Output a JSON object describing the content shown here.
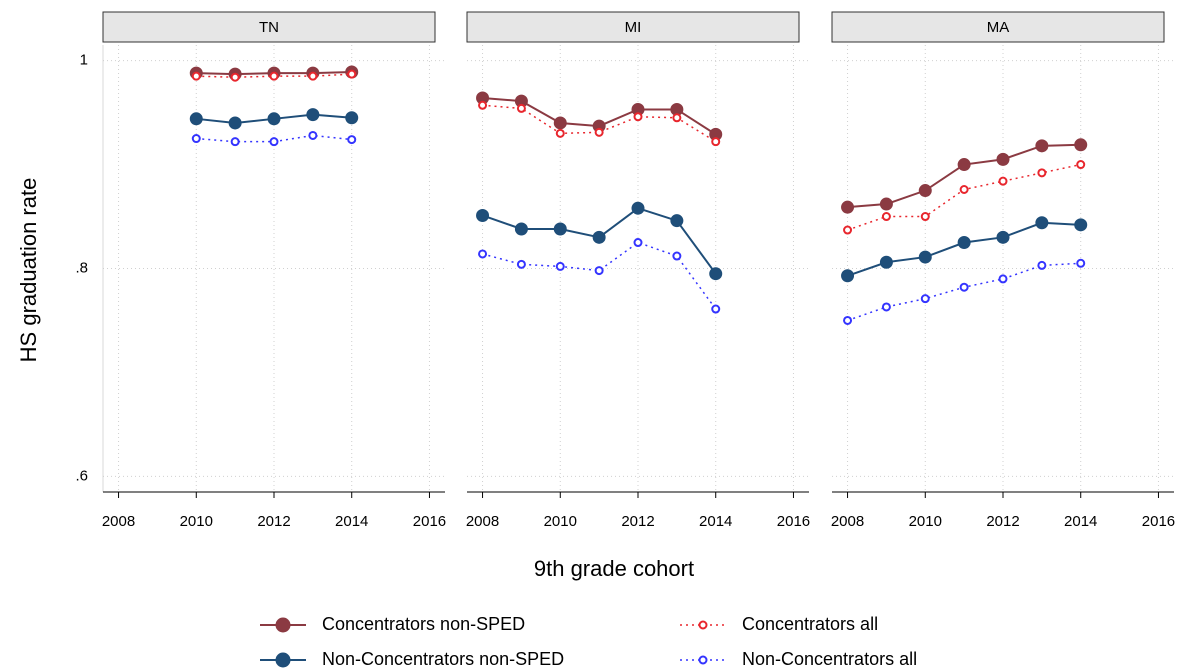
{
  "chart_data": {
    "type": "line",
    "y_label": "HS graduation rate",
    "x_label": "9th grade cohort",
    "ylim": [
      0.585,
      1.015
    ],
    "yticks": [
      {
        "value": 0.6,
        "label": ".6"
      },
      {
        "value": 0.8,
        "label": ".8"
      },
      1
    ],
    "xlim": [
      2007.6,
      2016.4
    ],
    "xticks": [
      2008,
      2010,
      2012,
      2014,
      2016
    ],
    "grid": true,
    "series": [
      {
        "name": "Concentrators non-SPED",
        "color": "#8b3a42",
        "line_style": "solid",
        "marker": "filled"
      },
      {
        "name": "Non-Concentrators non-SPED",
        "color": "#1f4e79",
        "line_style": "solid",
        "marker": "filled"
      },
      {
        "name": "Concentrators all",
        "color": "#e8262d",
        "line_style": "dotted",
        "marker": "hollow"
      },
      {
        "name": "Non-Concentrators all",
        "color": "#3434ff",
        "line_style": "dotted",
        "marker": "hollow"
      }
    ],
    "panels": [
      {
        "title": "TN",
        "x": [
          2010,
          2011,
          2012,
          2013,
          2014
        ],
        "series": [
          {
            "values": [
              0.988,
              0.987,
              0.988,
              0.988,
              0.989
            ]
          },
          {
            "values": [
              0.944,
              0.94,
              0.944,
              0.948,
              0.945
            ]
          },
          {
            "values": [
              0.985,
              0.984,
              0.985,
              0.985,
              0.987
            ]
          },
          {
            "values": [
              0.925,
              0.922,
              0.922,
              0.928,
              0.924
            ]
          }
        ]
      },
      {
        "title": "MI",
        "x": [
          2008,
          2009,
          2010,
          2011,
          2012,
          2013,
          2014
        ],
        "series": [
          {
            "values": [
              0.964,
              0.961,
              0.94,
              0.937,
              0.953,
              0.953,
              0.929
            ]
          },
          {
            "values": [
              0.851,
              0.838,
              0.838,
              0.83,
              0.858,
              0.846,
              0.795
            ]
          },
          {
            "values": [
              0.957,
              0.954,
              0.93,
              0.931,
              0.946,
              0.945,
              0.922
            ]
          },
          {
            "values": [
              0.814,
              0.804,
              0.802,
              0.798,
              0.825,
              0.812,
              0.761
            ]
          }
        ]
      },
      {
        "title": "MA",
        "x": [
          2008,
          2009,
          2010,
          2011,
          2012,
          2013,
          2014
        ],
        "series": [
          {
            "values": [
              0.859,
              0.862,
              0.875,
              0.9,
              0.905,
              0.918,
              0.919
            ]
          },
          {
            "values": [
              0.793,
              0.806,
              0.811,
              0.825,
              0.83,
              0.844,
              0.842
            ]
          },
          {
            "values": [
              0.837,
              0.85,
              0.85,
              0.876,
              0.884,
              0.892,
              0.9
            ]
          },
          {
            "values": [
              0.75,
              0.763,
              0.771,
              0.782,
              0.79,
              0.803,
              0.805
            ]
          }
        ]
      }
    ]
  }
}
